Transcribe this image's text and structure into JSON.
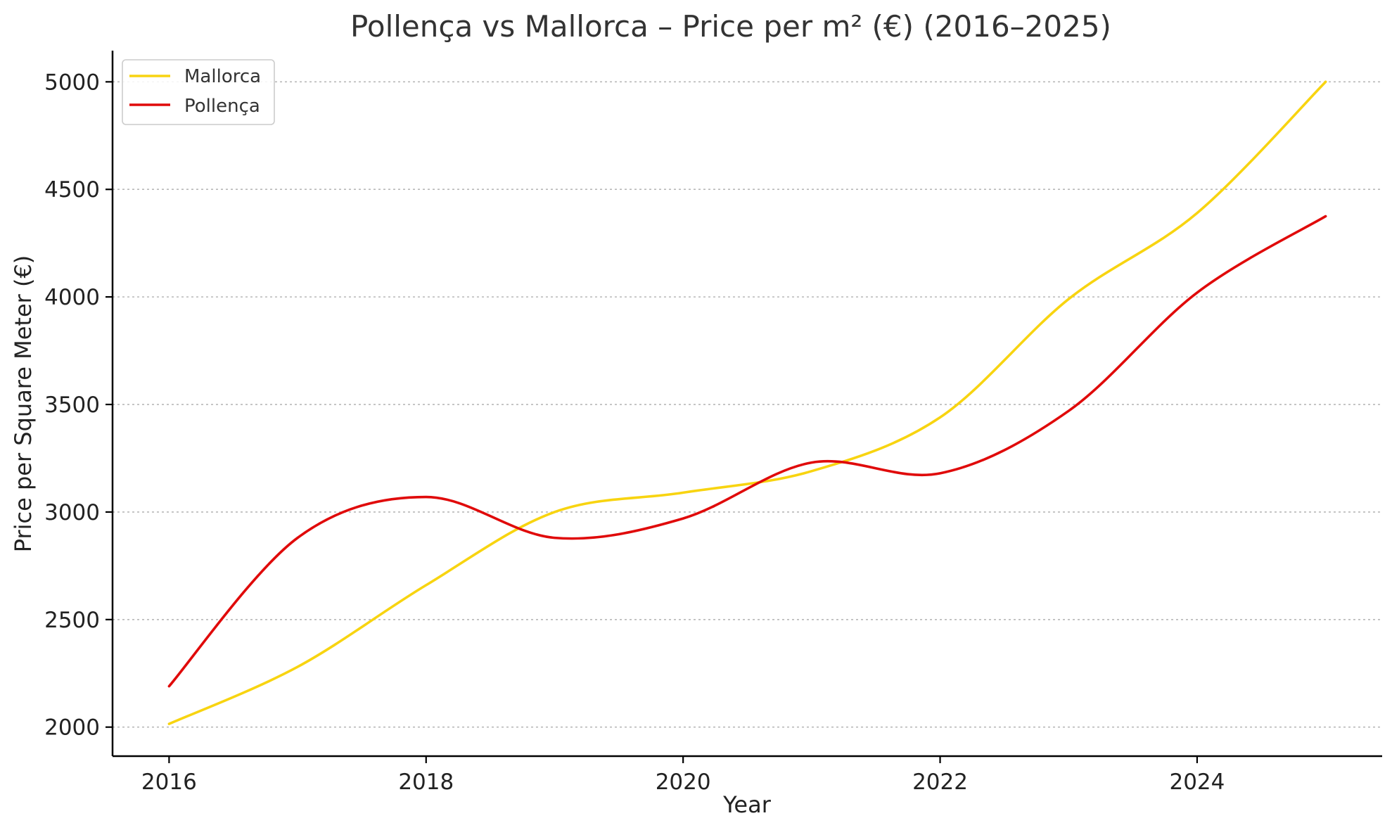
{
  "chart_data": {
    "type": "line",
    "title": "Pollença vs Mallorca – Price per m² (€) (2016–2025)",
    "xlabel": "Year",
    "ylabel": "Price per Square Meter (€)",
    "x": [
      2016,
      2017,
      2018,
      2019,
      2020,
      2021,
      2022,
      2023,
      2024,
      2025
    ],
    "xlim": [
      2015.56,
      2025.44
    ],
    "ylim": [
      1865,
      5145
    ],
    "xticks": [
      2016,
      2018,
      2020,
      2022,
      2024
    ],
    "yticks": [
      2000,
      2500,
      3000,
      3500,
      4000,
      4500,
      5000
    ],
    "xtick_labels": [
      "2016",
      "2018",
      "2020",
      "2022",
      "2024"
    ],
    "ytick_labels": [
      "2000",
      "2500",
      "3000",
      "3500",
      "4000",
      "4500",
      "5000"
    ],
    "grid": "horizontal dotted",
    "legend_position": "top-left",
    "series": [
      {
        "name": "Mallorca",
        "color": "#F8D410",
        "values": [
          2015,
          2280,
          2660,
          3000,
          3090,
          3190,
          3440,
          3990,
          4390,
          5000
        ]
      },
      {
        "name": "Pollença",
        "color": "#E00A0A",
        "values": [
          2190,
          2880,
          3070,
          2880,
          2970,
          3230,
          3180,
          3470,
          4020,
          4375
        ]
      }
    ]
  }
}
